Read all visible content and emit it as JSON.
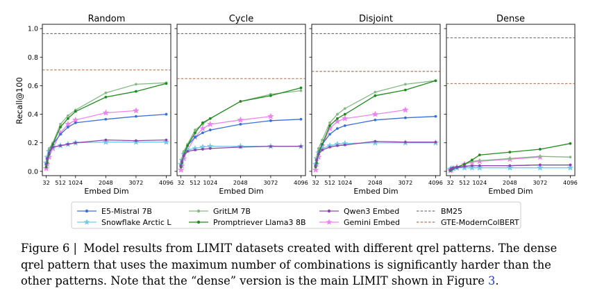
{
  "figure": {
    "y_label": "Recall@100",
    "x_label": "Embed Dim",
    "colors": {
      "E5-Mistral 7B": "#3a6fd8",
      "Snowflake Arctic L": "#74c9e6",
      "GritLM 7B": "#86b886",
      "Promptriever Llama3 8B": "#1f8a1f",
      "Qwen3 Embed": "#8e44ad",
      "Gemini Embed": "#ee82ee",
      "BM25": "#555555",
      "GTE-ModernColBERT": "#a0522d"
    },
    "legend": [
      {
        "name": "E5-Mistral 7B",
        "style": "dot"
      },
      {
        "name": "GritLM 7B",
        "style": "dot"
      },
      {
        "name": "Qwen3 Embed",
        "style": "dot"
      },
      {
        "name": "BM25",
        "style": "dash"
      },
      {
        "name": "Snowflake Arctic L",
        "style": "star"
      },
      {
        "name": "Promptriever Llama3 8B",
        "style": "dot"
      },
      {
        "name": "Gemini Embed",
        "style": "star"
      },
      {
        "name": "GTE-ModernColBERT",
        "style": "dash"
      }
    ]
  },
  "chart_data": [
    {
      "type": "line",
      "title": "Random",
      "xlabel": "Embed Dim",
      "ylabel": "Recall@100",
      "xticks": [
        32,
        512,
        1024,
        2048,
        3072,
        4096
      ],
      "yticks": [
        0.0,
        0.2,
        0.4,
        0.6,
        0.8,
        1.0
      ],
      "ylim": [
        -0.03,
        1.03
      ],
      "hlines": [
        {
          "name": "BM25",
          "value": 0.965
        },
        {
          "name": "GTE-ModernColBERT",
          "value": 0.71
        }
      ],
      "series": [
        {
          "name": "E5-Mistral 7B",
          "x": [
            32,
            64,
            128,
            256,
            512,
            768,
            1024,
            2048,
            3072,
            4096
          ],
          "values": [
            0.05,
            0.09,
            0.15,
            0.19,
            0.26,
            0.31,
            0.34,
            0.365,
            0.385,
            0.4
          ]
        },
        {
          "name": "GritLM 7B",
          "x": [
            32,
            64,
            128,
            256,
            512,
            768,
            1024,
            2048,
            3072,
            4096
          ],
          "values": [
            0.04,
            0.08,
            0.16,
            0.2,
            0.33,
            0.39,
            0.43,
            0.55,
            0.61,
            0.62
          ]
        },
        {
          "name": "Promptriever Llama3 8B",
          "x": [
            32,
            64,
            128,
            256,
            512,
            768,
            1024,
            2048,
            3072,
            4096
          ],
          "values": [
            0.03,
            0.06,
            0.12,
            0.19,
            0.31,
            0.37,
            0.42,
            0.52,
            0.56,
            0.615
          ]
        },
        {
          "name": "Qwen3 Embed",
          "x": [
            32,
            64,
            128,
            256,
            512,
            768,
            1024,
            2048,
            3072,
            4096
          ],
          "values": [
            0.05,
            0.09,
            0.13,
            0.17,
            0.18,
            0.19,
            0.2,
            0.22,
            0.215,
            0.22
          ]
        },
        {
          "name": "Snowflake Arctic L",
          "x": [
            32,
            64,
            128,
            256,
            512,
            768,
            1024,
            2048,
            3072,
            4096
          ],
          "values": [
            0.06,
            0.1,
            0.14,
            0.17,
            0.18,
            0.19,
            0.2,
            0.205,
            0.205,
            0.205
          ]
        },
        {
          "name": "Gemini Embed",
          "x": [
            32,
            64,
            128,
            256,
            512,
            768,
            1024,
            2048,
            3072
          ],
          "values": [
            0.02,
            0.05,
            0.1,
            0.16,
            0.27,
            0.33,
            0.36,
            0.41,
            0.425
          ]
        }
      ]
    },
    {
      "type": "line",
      "title": "Cycle",
      "xlabel": "Embed Dim",
      "ylabel": "",
      "xticks": [
        32,
        512,
        1024,
        2048,
        3072,
        4096
      ],
      "ylim": [
        -0.03,
        1.03
      ],
      "hlines": [
        {
          "name": "BM25",
          "value": 0.965
        },
        {
          "name": "GTE-ModernColBERT",
          "value": 0.65
        }
      ],
      "series": [
        {
          "name": "E5-Mistral 7B",
          "x": [
            32,
            64,
            128,
            256,
            512,
            768,
            1024,
            2048,
            3072,
            4096
          ],
          "values": [
            0.04,
            0.08,
            0.13,
            0.18,
            0.24,
            0.27,
            0.29,
            0.33,
            0.355,
            0.365
          ]
        },
        {
          "name": "GritLM 7B",
          "x": [
            32,
            64,
            128,
            256,
            512,
            768,
            1024,
            2048,
            3072,
            4096
          ],
          "values": [
            0.04,
            0.08,
            0.14,
            0.19,
            0.29,
            0.33,
            0.37,
            0.49,
            0.54,
            0.565
          ]
        },
        {
          "name": "Promptriever Llama3 8B",
          "x": [
            32,
            64,
            128,
            256,
            512,
            768,
            1024,
            2048,
            3072,
            4096
          ],
          "values": [
            0.03,
            0.06,
            0.11,
            0.18,
            0.27,
            0.34,
            0.37,
            0.49,
            0.53,
            0.585
          ]
        },
        {
          "name": "Qwen3 Embed",
          "x": [
            32,
            64,
            128,
            256,
            512,
            768,
            1024,
            2048,
            3072,
            4096
          ],
          "values": [
            0.04,
            0.07,
            0.11,
            0.14,
            0.15,
            0.155,
            0.16,
            0.17,
            0.175,
            0.175
          ]
        },
        {
          "name": "Snowflake Arctic L",
          "x": [
            32,
            64,
            128,
            256,
            512,
            768,
            1024,
            2048,
            3072,
            4096
          ],
          "values": [
            0.05,
            0.08,
            0.12,
            0.15,
            0.16,
            0.17,
            0.175,
            0.175,
            0.175,
            0.175
          ]
        },
        {
          "name": "Gemini Embed",
          "x": [
            32,
            64,
            128,
            256,
            512,
            768,
            1024,
            2048,
            3072
          ],
          "values": [
            0.01,
            0.04,
            0.09,
            0.15,
            0.24,
            0.3,
            0.33,
            0.36,
            0.385
          ]
        }
      ]
    },
    {
      "type": "line",
      "title": "Disjoint",
      "xlabel": "Embed Dim",
      "ylabel": "",
      "xticks": [
        32,
        512,
        1024,
        2048,
        3072,
        4096
      ],
      "ylim": [
        -0.03,
        1.03
      ],
      "hlines": [
        {
          "name": "BM25",
          "value": 0.965
        },
        {
          "name": "GTE-ModernColBERT",
          "value": 0.7
        }
      ],
      "series": [
        {
          "name": "E5-Mistral 7B",
          "x": [
            32,
            64,
            128,
            256,
            512,
            768,
            1024,
            2048,
            3072,
            4096
          ],
          "values": [
            0.04,
            0.08,
            0.14,
            0.19,
            0.26,
            0.3,
            0.32,
            0.36,
            0.375,
            0.385
          ]
        },
        {
          "name": "GritLM 7B",
          "x": [
            32,
            64,
            128,
            256,
            512,
            768,
            1024,
            2048,
            3072,
            4096
          ],
          "values": [
            0.04,
            0.09,
            0.16,
            0.22,
            0.34,
            0.4,
            0.44,
            0.555,
            0.61,
            0.635
          ]
        },
        {
          "name": "Promptriever Llama3 8B",
          "x": [
            32,
            64,
            128,
            256,
            512,
            768,
            1024,
            2048,
            3072,
            4096
          ],
          "values": [
            0.03,
            0.06,
            0.12,
            0.19,
            0.32,
            0.37,
            0.4,
            0.53,
            0.57,
            0.635
          ]
        },
        {
          "name": "Qwen3 Embed",
          "x": [
            32,
            64,
            128,
            256,
            512,
            768,
            1024,
            2048,
            3072,
            4096
          ],
          "values": [
            0.04,
            0.08,
            0.12,
            0.15,
            0.17,
            0.18,
            0.185,
            0.21,
            0.205,
            0.205
          ]
        },
        {
          "name": "Snowflake Arctic L",
          "x": [
            32,
            64,
            128,
            256,
            512,
            768,
            1024,
            2048,
            3072,
            4096
          ],
          "values": [
            0.05,
            0.09,
            0.13,
            0.16,
            0.18,
            0.19,
            0.195,
            0.2,
            0.2,
            0.2
          ]
        },
        {
          "name": "Gemini Embed",
          "x": [
            32,
            64,
            128,
            256,
            512,
            768,
            1024,
            2048,
            3072
          ],
          "values": [
            0.01,
            0.05,
            0.1,
            0.18,
            0.3,
            0.35,
            0.37,
            0.4,
            0.43
          ]
        }
      ]
    },
    {
      "type": "line",
      "title": "Dense",
      "xlabel": "Embed Dim",
      "ylabel": "",
      "xticks": [
        32,
        512,
        1024,
        2048,
        3072,
        4096
      ],
      "ylim": [
        -0.03,
        1.03
      ],
      "hlines": [
        {
          "name": "BM25",
          "value": 0.935
        },
        {
          "name": "GTE-ModernColBERT",
          "value": 0.615
        }
      ],
      "series": [
        {
          "name": "E5-Mistral 7B",
          "x": [
            32,
            64,
            128,
            256,
            512,
            768,
            1024,
            2048,
            3072,
            4096
          ],
          "values": [
            0.01,
            0.015,
            0.02,
            0.025,
            0.035,
            0.04,
            0.04,
            0.04,
            0.045,
            0.045
          ]
        },
        {
          "name": "GritLM 7B",
          "x": [
            32,
            64,
            128,
            256,
            512,
            768,
            1024,
            2048,
            3072,
            4096
          ],
          "values": [
            0.005,
            0.01,
            0.02,
            0.03,
            0.05,
            0.07,
            0.075,
            0.09,
            0.105,
            0.1
          ]
        },
        {
          "name": "Promptriever Llama3 8B",
          "x": [
            32,
            64,
            128,
            256,
            512,
            768,
            1024,
            2048,
            3072,
            4096
          ],
          "values": [
            0.005,
            0.01,
            0.02,
            0.03,
            0.05,
            0.08,
            0.115,
            0.135,
            0.155,
            0.195
          ]
        },
        {
          "name": "Qwen3 Embed",
          "x": [
            32,
            64,
            128,
            256,
            512,
            768,
            1024,
            2048,
            3072,
            4096
          ],
          "values": [
            0.01,
            0.02,
            0.025,
            0.03,
            0.035,
            0.04,
            0.04,
            0.04,
            0.045,
            0.045
          ]
        },
        {
          "name": "Snowflake Arctic L",
          "x": [
            32,
            64,
            128,
            256,
            512,
            768,
            1024,
            2048,
            3072,
            4096
          ],
          "values": [
            0.015,
            0.02,
            0.02,
            0.025,
            0.025,
            0.025,
            0.025,
            0.025,
            0.025,
            0.025
          ]
        },
        {
          "name": "Gemini Embed",
          "x": [
            32,
            64,
            128,
            256,
            512,
            768,
            1024,
            2048,
            3072
          ],
          "values": [
            0.005,
            0.01,
            0.02,
            0.03,
            0.05,
            0.065,
            0.07,
            0.085,
            0.1
          ]
        }
      ]
    }
  ],
  "caption": {
    "label": "Figure 6 |",
    "text_before_ref": "Model results from LIMIT datasets created with different qrel patterns. The dense qrel pattern that uses the maximum number of combinations is significantly harder than the other patterns. Note that the “dense” version is the main LIMIT shown in Figure ",
    "ref": "3",
    "text_after_ref": "."
  }
}
